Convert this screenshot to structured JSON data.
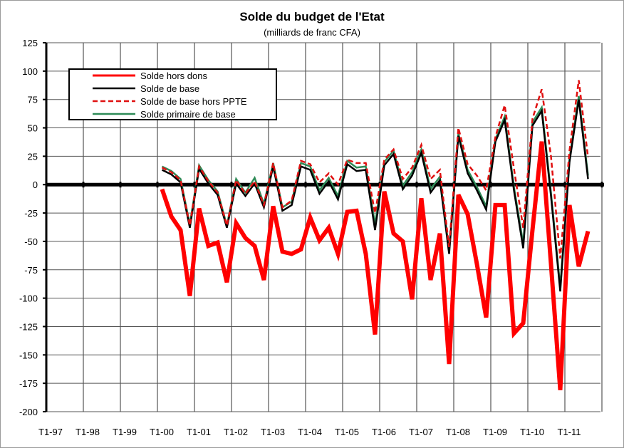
{
  "chart_data": {
    "type": "line",
    "title": "Solde du budget de l'Etat",
    "subtitle": "(milliards de franc CFA)",
    "xlabel": "",
    "ylabel": "",
    "ylim": [
      -200,
      125
    ],
    "yticks": [
      125,
      100,
      75,
      50,
      25,
      0,
      -25,
      -50,
      -75,
      -100,
      -125,
      -150,
      -175,
      -200
    ],
    "xtick_labels": [
      "T1-97",
      "T1-98",
      "T1-99",
      "T1-00",
      "T1-01",
      "T1-02",
      "T1-03",
      "T1-04",
      "T1-05",
      "T1-06",
      "T1-07",
      "T1-08",
      "T1-09",
      "T1-10",
      "T1-11"
    ],
    "x_start": "T1-00",
    "x_end": "T3-11",
    "grid": true,
    "legend_position": "top-left",
    "series": [
      {
        "name": "Solde hors dons",
        "color": "#ff0000",
        "style": "thick",
        "values": [
          -4,
          -28,
          -40,
          -98,
          -21,
          -54,
          -51,
          -86,
          -34,
          -47,
          -54,
          -84,
          -19,
          -59,
          -61,
          -57,
          -29,
          -49,
          -38,
          -61,
          -24,
          -23,
          -61,
          -132,
          -6,
          -43,
          -50,
          -101,
          -12,
          -84,
          -43,
          -158,
          -9,
          -26,
          -70,
          -117,
          -18,
          -18,
          -131,
          -122,
          -40,
          38,
          -70,
          -181,
          -18,
          -72,
          -41
        ]
      },
      {
        "name": "Solde de base",
        "color": "#000000",
        "style": "solid",
        "values": [
          13,
          9,
          2,
          -38,
          14,
          1,
          -9,
          -38,
          1,
          -10,
          1,
          -20,
          16,
          -23,
          -18,
          16,
          13,
          -8,
          3,
          -13,
          18,
          12,
          13,
          -40,
          17,
          27,
          -4,
          8,
          28,
          -7,
          4,
          -61,
          43,
          10,
          -5,
          -22,
          38,
          57,
          -5,
          -56,
          52,
          65,
          -10,
          -94,
          20,
          75,
          5
        ]
      },
      {
        "name": "Solde de base hors PPTE",
        "color": "#e01010",
        "style": "dashed",
        "values": [
          15,
          11,
          4,
          -36,
          16,
          3,
          -7,
          -36,
          4,
          -8,
          3,
          -18,
          19,
          -20,
          -14,
          21,
          18,
          2,
          10,
          0,
          22,
          19,
          19,
          -25,
          22,
          31,
          5,
          15,
          35,
          5,
          13,
          -55,
          50,
          18,
          8,
          -5,
          42,
          70,
          14,
          -38,
          58,
          84,
          25,
          -65,
          30,
          92,
          24
        ]
      },
      {
        "name": "Solde primaire de base",
        "color": "#2e8b57",
        "style": "solid",
        "values": [
          16,
          12,
          5,
          -35,
          17,
          4,
          -6,
          -36,
          5,
          -7,
          6,
          -17,
          19,
          -20,
          -15,
          19,
          16,
          -5,
          6,
          -10,
          21,
          15,
          16,
          -35,
          20,
          30,
          -1,
          11,
          31,
          -4,
          7,
          -58,
          45,
          13,
          -2,
          -19,
          40,
          60,
          -2,
          -52,
          55,
          68,
          -7,
          -90,
          23,
          78,
          8
        ]
      }
    ]
  }
}
